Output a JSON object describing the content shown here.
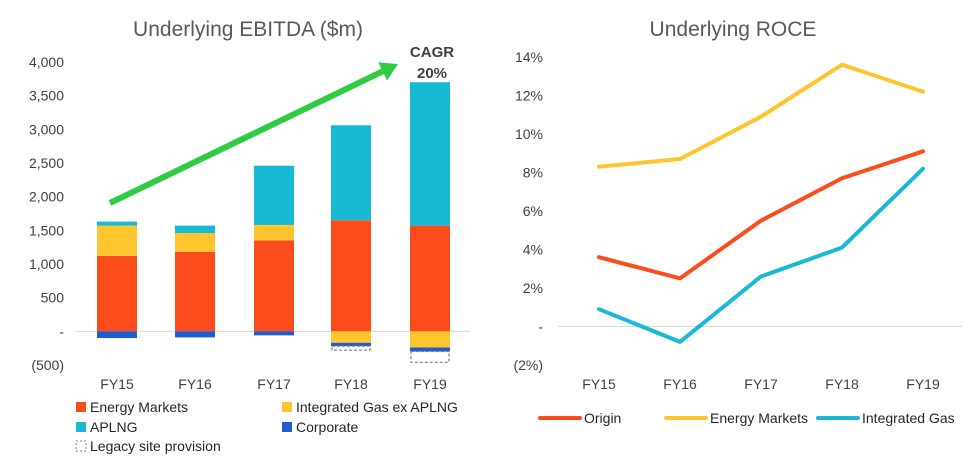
{
  "colors": {
    "energy_markets": "#FC4C1B",
    "integrated_gas_ex_aplng": "#FFC52E",
    "aplng": "#18B9D4",
    "corporate": "#1F5CD1",
    "origin": "#FC4C1B",
    "energy_markets_line": "#FFC52E",
    "integrated_gas_line": "#18B9D4",
    "arrow": "#2ECC40",
    "axis": "#D9D9D9"
  },
  "chart_data": [
    {
      "type": "bar",
      "stacked": true,
      "title": "Underlying EBITDA ($m)",
      "categories": [
        "FY15",
        "FY16",
        "FY17",
        "FY18",
        "FY19"
      ],
      "y_ticks": [
        -500,
        0,
        500,
        1000,
        1500,
        2000,
        2500,
        3000,
        3500,
        4000
      ],
      "y_tick_labels": [
        "(500)",
        "-",
        "500",
        "1,000",
        "1,500",
        "2,000",
        "2,500",
        "3,000",
        "3,500",
        "4,000"
      ],
      "ylim": [
        -500,
        4000
      ],
      "legend_position": "bottom",
      "series": [
        {
          "name": "Energy Markets",
          "key": "energy_markets",
          "values": [
            1120,
            1180,
            1350,
            1650,
            1570
          ]
        },
        {
          "name": "Integrated Gas ex APLNG",
          "key": "integrated_gas_ex_aplng",
          "values": [
            450,
            280,
            230,
            -170,
            -240
          ]
        },
        {
          "name": "APLNG",
          "key": "aplng",
          "values": [
            60,
            110,
            880,
            1410,
            2130
          ]
        },
        {
          "name": "Corporate",
          "key": "corporate",
          "values": [
            -100,
            -90,
            -60,
            -50,
            -60
          ]
        },
        {
          "name": "Legacy site provision",
          "key": "legacy",
          "values": [
            0,
            0,
            0,
            -60,
            -160
          ]
        }
      ],
      "annotation": {
        "line1": "CAGR",
        "line2": "20%"
      }
    },
    {
      "type": "line",
      "title": "Underlying ROCE",
      "categories": [
        "FY15",
        "FY16",
        "FY17",
        "FY18",
        "FY19"
      ],
      "y_ticks": [
        -2,
        0,
        2,
        4,
        6,
        8,
        10,
        12,
        14
      ],
      "y_tick_labels": [
        "(2%)",
        "-",
        "2%",
        "4%",
        "6%",
        "8%",
        "10%",
        "12%",
        "14%"
      ],
      "ylim": [
        -2,
        14
      ],
      "legend_position": "bottom",
      "series": [
        {
          "name": "Origin",
          "key": "origin",
          "values": [
            3.6,
            2.5,
            5.5,
            7.7,
            9.1
          ]
        },
        {
          "name": "Energy Markets",
          "key": "energy_markets_line",
          "values": [
            8.3,
            8.7,
            10.9,
            13.6,
            12.2
          ]
        },
        {
          "name": "Integrated Gas",
          "key": "integrated_gas_line",
          "values": [
            0.9,
            -0.8,
            2.6,
            4.1,
            8.2
          ]
        }
      ]
    }
  ]
}
